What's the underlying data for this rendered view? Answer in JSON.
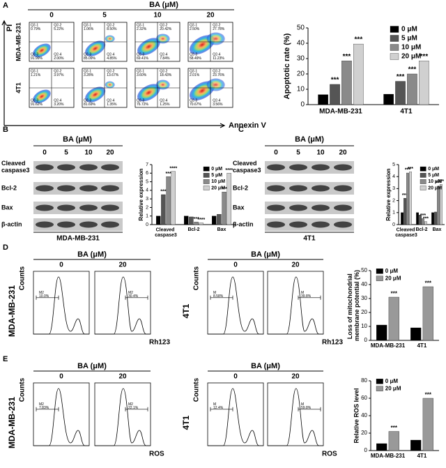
{
  "chart_data": [
    {
      "type": "bar",
      "y_label": "Apoptotic rate (%)",
      "categories": [
        "MDA-MB-231",
        "4T1"
      ],
      "series": [
        {
          "name": "0 μM",
          "color": "#000000",
          "values": [
            6.5,
            6.8
          ],
          "annotations": [
            null,
            null
          ]
        },
        {
          "name": "5 μM",
          "color": "#555555",
          "values": [
            13.2,
            15.2
          ],
          "annotations": [
            "***",
            "***"
          ]
        },
        {
          "name": "10 μM",
          "color": "#8a8a8a",
          "values": [
            28.5,
            20
          ],
          "annotations": [
            "***",
            "***"
          ]
        },
        {
          "name": "20 μM",
          "color": "#d0d0d0",
          "values": [
            39.5,
            28.5
          ],
          "annotations": [
            "***",
            "***"
          ]
        }
      ],
      "ylim": [
        0,
        50
      ],
      "yticks": [
        0,
        10,
        20,
        30,
        40,
        50
      ],
      "legend": "upper right"
    },
    {
      "type": "bar",
      "y_label": "Relative expression",
      "categories": [
        "Cleaved caspase3",
        "Bcl-2",
        "Bax"
      ],
      "series": [
        {
          "name": "0 μM",
          "color": "#000000",
          "values": [
            1,
            1,
            1
          ],
          "annotations": [
            null,
            null,
            null
          ]
        },
        {
          "name": "5 μM",
          "color": "#555555",
          "values": [
            3.5,
            0.9,
            1.2
          ],
          "annotations": [
            "***",
            null,
            null
          ]
        },
        {
          "name": "10 μM",
          "color": "#8a8a8a",
          "values": [
            5.6,
            0.3,
            3.8
          ],
          "annotations": [
            "***",
            "***",
            "***"
          ]
        },
        {
          "name": "20 μM",
          "color": "#d0d0d0",
          "values": [
            6.2,
            0.2,
            6.0
          ],
          "annotations": [
            "****",
            "****",
            "****"
          ]
        }
      ],
      "ylim": [
        0,
        7
      ],
      "yticks": [
        0,
        1,
        2,
        3,
        4,
        5,
        6,
        7
      ],
      "legend": "upper right"
    },
    {
      "type": "bar",
      "y_label": "Relative expression",
      "categories": [
        "Cleaved caspase3",
        "Bcl-2",
        "Bax"
      ],
      "series": [
        {
          "name": "0 μM",
          "color": "#000000",
          "values": [
            1,
            1,
            1
          ],
          "annotations": [
            null,
            null,
            null
          ]
        },
        {
          "name": "5 μM",
          "color": "#555555",
          "values": [
            2.2,
            0.8,
            1.05
          ],
          "annotations": [
            "***",
            null,
            null
          ]
        },
        {
          "name": "10 μM",
          "color": "#8a8a8a",
          "values": [
            4.3,
            0.5,
            3.2
          ],
          "annotations": [
            "***",
            "***",
            "***"
          ]
        },
        {
          "name": "20 μM",
          "color": "#d0d0d0",
          "values": [
            4.4,
            0.25,
            3.35
          ],
          "annotations": [
            "***",
            "***",
            "***"
          ]
        }
      ],
      "ylim": [
        0,
        5
      ],
      "yticks": [
        0,
        1,
        2,
        3,
        4,
        5
      ],
      "legend": "upper right"
    },
    {
      "type": "bar",
      "y_label": "Loss of mitochondrial membrane potential (%)",
      "categories": [
        "MDA-MB-231",
        "4T1"
      ],
      "series": [
        {
          "name": "0 μM",
          "color": "#000000",
          "values": [
            11,
            9
          ],
          "annotations": [
            null,
            null
          ]
        },
        {
          "name": "20 μM",
          "color": "#999999",
          "values": [
            31,
            38.5
          ],
          "annotations": [
            "***",
            "***"
          ]
        }
      ],
      "ylim": [
        0,
        50
      ],
      "yticks": [
        0,
        10,
        20,
        30,
        40,
        50
      ],
      "legend": "upper left"
    },
    {
      "type": "bar",
      "y_label": "Relative ROS level",
      "categories": [
        "MDA-MB-231",
        "4T1"
      ],
      "series": [
        {
          "name": "0 μM",
          "color": "#000000",
          "values": [
            8,
            12
          ],
          "annotations": [
            null,
            null
          ]
        },
        {
          "name": "20 μM",
          "color": "#999999",
          "values": [
            22,
            60
          ],
          "annotations": [
            "***",
            "***"
          ]
        }
      ],
      "ylim": [
        0,
        80
      ],
      "yticks": [
        0,
        20,
        40,
        60,
        80
      ],
      "legend": "upper left"
    }
  ],
  "panel_a": {
    "label": "A",
    "title": "BA (μM)",
    "concentrations": [
      "0",
      "5",
      "10",
      "20"
    ],
    "y_axis": "PI",
    "x_axis": "Annexin V",
    "rows": [
      {
        "name": "MDA-MB-231",
        "plots": [
          [
            {
              "name": "Q2-1",
              "value": "0.79%"
            },
            {
              "name": "Q2-2",
              "value": "5.22%"
            },
            {
              "name": "Q2-3",
              "value": "91.99%"
            },
            {
              "name": "Q2-4",
              "value": "2.00%"
            }
          ],
          [
            {
              "name": "Q2-1",
              "value": "1.06%"
            },
            {
              "name": "Q2-2",
              "value": "8.50%"
            },
            {
              "name": "Q2-3",
              "value": "85.09%"
            },
            {
              "name": "Q2-4",
              "value": "4.85%"
            }
          ],
          [
            {
              "name": "Q2-1",
              "value": "2.32%"
            },
            {
              "name": "Q2-2",
              "value": "20.42%"
            },
            {
              "name": "Q2-3",
              "value": "69.41%"
            },
            {
              "name": "Q2-4",
              "value": "7.84%"
            }
          ],
          [
            {
              "name": "Q2-1",
              "value": "2.50%"
            },
            {
              "name": "Q2-2",
              "value": "27.78%"
            },
            {
              "name": "Q2-3",
              "value": "58.49%"
            },
            {
              "name": "Q2-4",
              "value": "11.23%"
            }
          ]
        ]
      },
      {
        "name": "4T1",
        "plots": [
          [
            {
              "name": "Q2-1",
              "value": "1.21%"
            },
            {
              "name": "Q2-2",
              "value": "3.97%"
            },
            {
              "name": "Q2-3",
              "value": "91.62%"
            },
            {
              "name": "Q2-4",
              "value": "3.20%"
            }
          ],
          [
            {
              "name": "Q2-1",
              "value": "3.28%"
            },
            {
              "name": "Q2-2",
              "value": "13.67%"
            },
            {
              "name": "Q2-3",
              "value": "81.69%"
            },
            {
              "name": "Q2-4",
              "value": "1.35%"
            }
          ],
          [
            {
              "name": "Q2-1",
              "value": "3.60%"
            },
            {
              "name": "Q2-2",
              "value": "18.43%"
            },
            {
              "name": "Q2-3",
              "value": "76.72%"
            },
            {
              "name": "Q2-4",
              "value": "1.25%"
            }
          ],
          [
            {
              "name": "Q2-1",
              "value": "2.01%"
            },
            {
              "name": "Q2-2",
              "value": "23.76%"
            },
            {
              "name": "Q2-3",
              "value": "70.67%"
            },
            {
              "name": "Q2-4",
              "value": "3.56%"
            }
          ]
        ]
      }
    ]
  },
  "panel_b": {
    "label": "B",
    "title": "BA (μM)",
    "concentrations": [
      "0",
      "5",
      "10",
      "20"
    ],
    "proteins": [
      "Cleaved caspase3",
      "Bcl-2",
      "Bax",
      "β-actin"
    ],
    "cell_line": "MDA-MB-231"
  },
  "panel_c": {
    "label": "C",
    "title": "BA (μM)",
    "concentrations": [
      "0",
      "5",
      "10",
      "20"
    ],
    "proteins": [
      "Cleaved caspase3",
      "Bcl-2",
      "Bax",
      "β-actin"
    ],
    "cell_line": "4T1"
  },
  "panel_d": {
    "label": "D",
    "title": "BA (μM)",
    "y_axis": "Counts",
    "x_axis": "Rh123",
    "groups": [
      {
        "cell_line": "MDA-MB-231",
        "concentrations": [
          "0",
          "20"
        ],
        "gates": [
          {
            "name": "M2",
            "value": "10.0%"
          },
          {
            "name": "M2",
            "value": "30.4%"
          }
        ]
      },
      {
        "cell_line": "4T1",
        "concentrations": [
          "0",
          "20"
        ],
        "gates": [
          {
            "name": "M",
            "value": "8.58%"
          },
          {
            "name": "M",
            "value": "39.8%"
          }
        ]
      }
    ]
  },
  "panel_e": {
    "label": "E",
    "title": "BA (μM)",
    "y_axis": "Counts",
    "x_axis": "ROS",
    "groups": [
      {
        "cell_line": "MDA-MB-231",
        "concentrations": [
          "0",
          "20"
        ],
        "gates": [
          {
            "name": "M2",
            "value": "7.83%"
          },
          {
            "name": "M2",
            "value": "22.1%"
          }
        ]
      },
      {
        "cell_line": "4T1",
        "concentrations": [
          "0",
          "20"
        ],
        "gates": [
          {
            "name": "M",
            "value": "12.4%"
          },
          {
            "name": "M",
            "value": "59.8%"
          }
        ]
      }
    ]
  }
}
